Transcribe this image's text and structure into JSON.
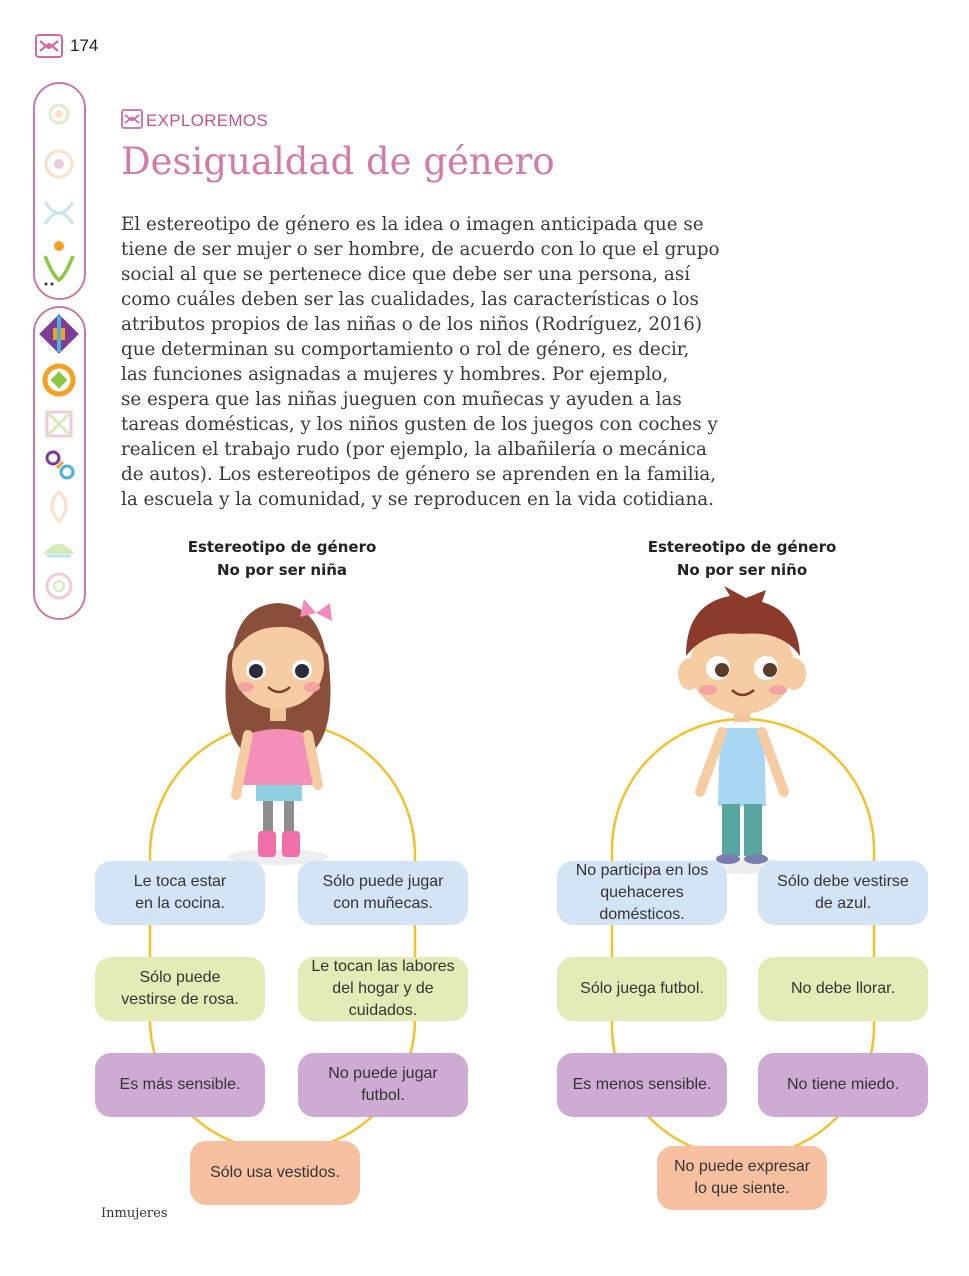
{
  "page": {
    "number": "174",
    "section_label": "EXPLOREMOS",
    "title": "Desigualdad de género",
    "paragraph_lines": [
      "El estereotipo de género es la idea o imagen anticipada que se",
      "tiene de ser mujer o ser hombre, de acuerdo con lo que el grupo",
      "social al que se pertenece dice que debe ser una persona, así",
      "como cuáles deben ser las cualidades, las características o los",
      "atributos propios de las niñas o de los niños (Rodríguez, 2016)",
      "que determinan su comportamiento o rol de género, es decir,",
      "las funciones asignadas a mujeres y hombres. Por ejemplo,",
      "se espera que las niñas jueguen con muñecas y ayuden a las",
      "tareas domésticas, y los niños gusten de los juegos con coches y",
      "realicen el trabajo rudo (por ejemplo, la albañilería o mecánica",
      "de autos). Los estereotipos de género se aprenden en la familia,",
      "la escuela y la comunidad, y se reproducen en la vida cotidiana."
    ],
    "footer": "Inmujeres"
  },
  "girl": {
    "heading_line1": "Estereotipo de género",
    "heading_line2": "No por ser niña",
    "items": [
      "Le toca estar\nen la cocina.",
      "Sólo puede jugar\ncon muñecas.",
      "Sólo puede\nvestirse de rosa.",
      "Le tocan las labores\ndel hogar y de cuidados.",
      "Es más sensible.",
      "No puede jugar\nfutbol.",
      "Sólo usa vestidos."
    ]
  },
  "boy": {
    "heading_line1": "Estereotipo de género",
    "heading_line2": "No por ser niño",
    "items": [
      "No participa en los\nquehaceres domésticos.",
      "Sólo debe vestirse\nde azul.",
      "Sólo juega futbol.",
      "No debe llorar.",
      "Es menos sensible.",
      "No tiene miedo.",
      "No puede expresar\nlo que siente."
    ]
  },
  "colors": {
    "accent_pink": "#d47aa8",
    "pill_blue": "#d3e4f6",
    "pill_green": "#e3ecb6",
    "pill_purple": "#cdabd3",
    "pill_peach": "#f7c0a0",
    "ring_yellow": "#f2c12e"
  }
}
